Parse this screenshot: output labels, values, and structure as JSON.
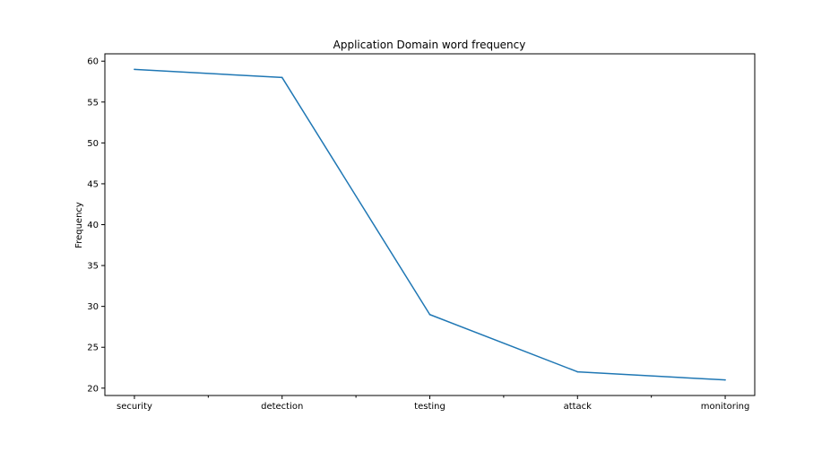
{
  "chart_data": {
    "type": "line",
    "title": "Application Domain word frequency",
    "xlabel": "",
    "ylabel": "Frequency",
    "categories": [
      "security",
      "detection",
      "testing",
      "attack",
      "monitoring"
    ],
    "series": [
      {
        "values": [
          59,
          58,
          29,
          22,
          21
        ],
        "color": "#1f77b4"
      }
    ],
    "ylim": [
      19.1,
      60.9
    ],
    "yticks": [
      20,
      25,
      30,
      35,
      40,
      45,
      50,
      55,
      60
    ],
    "minor_xticks": [
      0.5,
      1.5,
      2.5,
      3.5
    ],
    "grid": false,
    "legend": "none"
  }
}
